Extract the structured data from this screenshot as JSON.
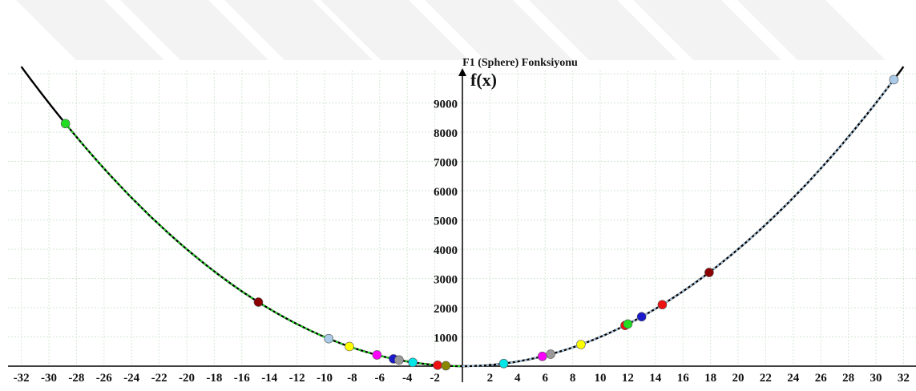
{
  "chart_data": {
    "type": "line",
    "title": "F1 (Sphere) Fonksiyonu",
    "ylabel": "f(x)",
    "xlabel": "",
    "xlim": [
      -32,
      32
    ],
    "ylim": [
      0,
      10000
    ],
    "grid": true,
    "x_ticks": [
      -32,
      -30,
      -28,
      -26,
      -24,
      -22,
      -20,
      -18,
      -16,
      -14,
      -12,
      -10,
      -8,
      -6,
      -4,
      -2,
      2,
      4,
      6,
      8,
      10,
      12,
      14,
      16,
      18,
      20,
      22,
      24,
      26,
      28,
      30,
      32
    ],
    "y_ticks": [
      1000,
      2000,
      3000,
      4000,
      5000,
      6000,
      7000,
      8000,
      9000
    ],
    "function": "f(x) = 10 * x^2",
    "points": [
      {
        "x": -28.8,
        "color": "#22dd22"
      },
      {
        "x": -14.8,
        "color": "#8b0000"
      },
      {
        "x": -9.7,
        "color": "#a9cbe8"
      },
      {
        "x": -8.2,
        "color": "#ffff00"
      },
      {
        "x": -6.2,
        "color": "#ff00ff"
      },
      {
        "x": -5.0,
        "color": "#1a1acc"
      },
      {
        "x": -4.6,
        "color": "#999999"
      },
      {
        "x": -3.6,
        "color": "#00e6e6"
      },
      {
        "x": -1.8,
        "color": "#ee1111"
      },
      {
        "x": -1.2,
        "color": "#888800"
      },
      {
        "x": 3.0,
        "color": "#00e6e6"
      },
      {
        "x": 5.8,
        "color": "#ff00ff"
      },
      {
        "x": 6.4,
        "color": "#999999"
      },
      {
        "x": 8.6,
        "color": "#ffff00"
      },
      {
        "x": 11.8,
        "color": "#ee1111"
      },
      {
        "x": 12.0,
        "color": "#22dd22"
      },
      {
        "x": 13.0,
        "color": "#1a1acc"
      },
      {
        "x": 14.5,
        "color": "#ee1111"
      },
      {
        "x": 17.9,
        "color": "#8b0000"
      },
      {
        "x": 31.3,
        "color": "#a9cbe8"
      }
    ],
    "trails": [
      {
        "from": -28.8,
        "to": 0,
        "color": "#22dd22"
      },
      {
        "from": 0,
        "to": 31.3,
        "color": "#a9cbe8"
      }
    ]
  }
}
